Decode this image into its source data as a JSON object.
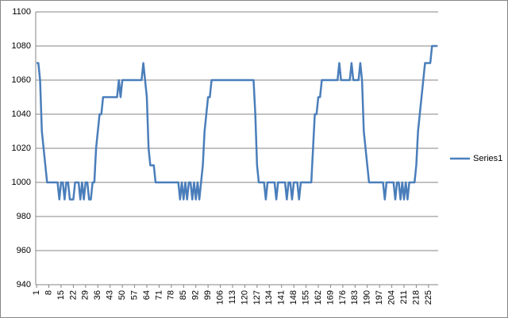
{
  "chart_data": {
    "type": "line",
    "categories": [
      1,
      null,
      null,
      null,
      null,
      null,
      null,
      8,
      null,
      null,
      null,
      null,
      null,
      null,
      15,
      null,
      null,
      null,
      null,
      null,
      null,
      22,
      null,
      null,
      null,
      null,
      null,
      null,
      29,
      null,
      null,
      null,
      null,
      null,
      null,
      36,
      null,
      null,
      null,
      null,
      null,
      null,
      43,
      null,
      null,
      null,
      null,
      null,
      null,
      50,
      null,
      null,
      null,
      null,
      null,
      null,
      57,
      null,
      null,
      null,
      null,
      null,
      null,
      64,
      null,
      null,
      null,
      null,
      null,
      null,
      71,
      null,
      null,
      null,
      null,
      null,
      null,
      78,
      null,
      null,
      null,
      null,
      null,
      null,
      85,
      null,
      null,
      null,
      null,
      null,
      null,
      92,
      null,
      null,
      null,
      null,
      null,
      null,
      99,
      null,
      null,
      null,
      null,
      null,
      null,
      106,
      null,
      null,
      null,
      null,
      null,
      null,
      113,
      null,
      null,
      null,
      null,
      null,
      null,
      120,
      null,
      null,
      null,
      null,
      null,
      null,
      127,
      null,
      null,
      null,
      null,
      null,
      null,
      134,
      null,
      null,
      null,
      null,
      null,
      null,
      141,
      null,
      null,
      null,
      null,
      null,
      null,
      148,
      null,
      null,
      null,
      null,
      null,
      null,
      155,
      null,
      null,
      null,
      null,
      null,
      null,
      162,
      null,
      null,
      null,
      null,
      null,
      null,
      169,
      null,
      null,
      null,
      null,
      null,
      null,
      176,
      null,
      null,
      null,
      null,
      null,
      null,
      183,
      null,
      null,
      null,
      null,
      null,
      null,
      190,
      null,
      null,
      null,
      null,
      null,
      null,
      197,
      null,
      null,
      null,
      null,
      null,
      null,
      204,
      null,
      null,
      null,
      null,
      null,
      null,
      211,
      null,
      null,
      null,
      null,
      null,
      null,
      218,
      null,
      null,
      null,
      null,
      null,
      null,
      225,
      null,
      null,
      null,
      null,
      null
    ],
    "series": [
      {
        "name": "Series1",
        "color": "#4a7ebb",
        "values": [
          1070,
          1070,
          1060,
          1030,
          1020,
          1010,
          1000,
          1000,
          1000,
          1000,
          1000,
          1000,
          1000,
          990,
          1000,
          1000,
          990,
          1000,
          1000,
          990,
          990,
          990,
          1000,
          1000,
          1000,
          990,
          1000,
          990,
          1000,
          1000,
          990,
          990,
          1000,
          1000,
          1020,
          1030,
          1040,
          1040,
          1050,
          1050,
          1050,
          1050,
          1050,
          1050,
          1050,
          1050,
          1050,
          1060,
          1050,
          1060,
          1060,
          1060,
          1060,
          1060,
          1060,
          1060,
          1060,
          1060,
          1060,
          1060,
          1060,
          1070,
          1060,
          1050,
          1020,
          1010,
          1010,
          1010,
          1000,
          1000,
          1000,
          1000,
          1000,
          1000,
          1000,
          1000,
          1000,
          1000,
          1000,
          1000,
          1000,
          1000,
          990,
          1000,
          990,
          1000,
          990,
          1000,
          1000,
          990,
          1000,
          990,
          1000,
          990,
          1000,
          1010,
          1030,
          1040,
          1050,
          1050,
          1060,
          1060,
          1060,
          1060,
          1060,
          1060,
          1060,
          1060,
          1060,
          1060,
          1060,
          1060,
          1060,
          1060,
          1060,
          1060,
          1060,
          1060,
          1060,
          1060,
          1060,
          1060,
          1060,
          1060,
          1060,
          1040,
          1010,
          1000,
          1000,
          1000,
          1000,
          990,
          1000,
          1000,
          1000,
          1000,
          1000,
          990,
          1000,
          1000,
          1000,
          1000,
          1000,
          990,
          1000,
          1000,
          990,
          1000,
          1000,
          1000,
          990,
          1000,
          1000,
          1000,
          1000,
          1000,
          1000,
          1000,
          1020,
          1040,
          1040,
          1050,
          1050,
          1060,
          1060,
          1060,
          1060,
          1060,
          1060,
          1060,
          1060,
          1060,
          1060,
          1070,
          1060,
          1060,
          1060,
          1060,
          1060,
          1060,
          1070,
          1060,
          1060,
          1060,
          1060,
          1070,
          1060,
          1030,
          1020,
          1010,
          1000,
          1000,
          1000,
          1000,
          1000,
          1000,
          1000,
          1000,
          1000,
          990,
          1000,
          1000,
          1000,
          1000,
          1000,
          990,
          1000,
          1000,
          990,
          1000,
          990,
          1000,
          990,
          1000,
          1000,
          1000,
          1000,
          1010,
          1030,
          1040,
          1050,
          1060,
          1070,
          1070,
          1070,
          1070,
          1080,
          1080,
          1080,
          1080
        ]
      }
    ],
    "ylim": [
      940,
      1100
    ],
    "yticks": [
      940,
      960,
      980,
      1000,
      1020,
      1040,
      1060,
      1080,
      1100
    ],
    "grid": true,
    "legend": "right"
  }
}
